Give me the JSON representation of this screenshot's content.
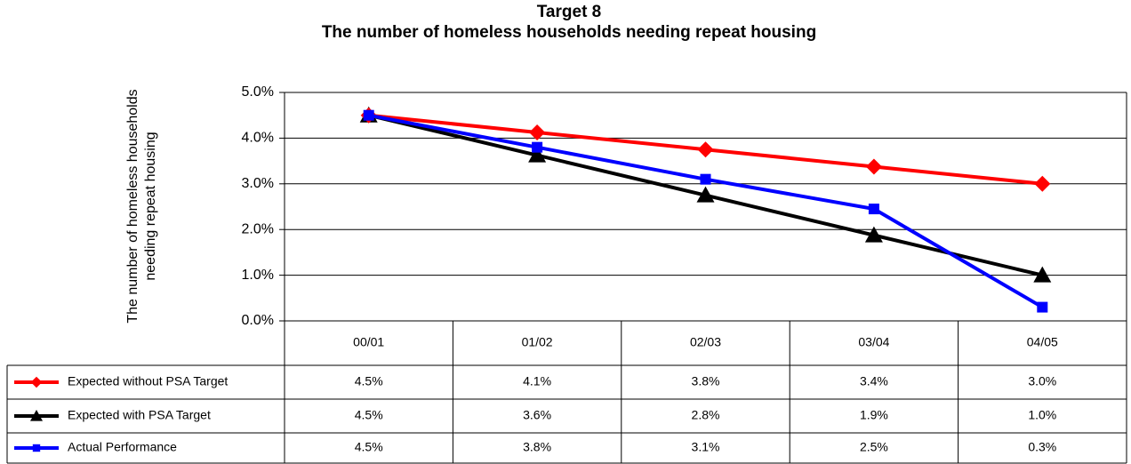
{
  "chart_data": {
    "type": "line",
    "title": "Target 8",
    "subtitle": "The number of homeless households needing repeat housing",
    "ylabel": [
      "The number of homeless households",
      "needing repeat housing"
    ],
    "categories": [
      "00/01",
      "01/02",
      "02/03",
      "03/04",
      "04/05"
    ],
    "ylim": [
      0,
      5
    ],
    "yticks": [
      {
        "value": 0,
        "label": "0.0%"
      },
      {
        "value": 1,
        "label": "1.0%"
      },
      {
        "value": 2,
        "label": "2.0%"
      },
      {
        "value": 3,
        "label": "3.0%"
      },
      {
        "value": 4,
        "label": "4.0%"
      },
      {
        "value": 5,
        "label": "5.0%"
      }
    ],
    "grid": true,
    "series": [
      {
        "name": "Expected without PSA Target",
        "color": "#ff0000",
        "marker": "diamond",
        "values": [
          4.5,
          4.125,
          3.75,
          3.375,
          3.0
        ],
        "value_labels": [
          "4.5%",
          "4.1%",
          "3.8%",
          "3.4%",
          "3.0%"
        ]
      },
      {
        "name": "Expected with PSA Target",
        "color": "#000000",
        "marker": "triangle",
        "values": [
          4.5,
          3.625,
          2.75,
          1.875,
          1.0
        ],
        "value_labels": [
          "4.5%",
          "3.6%",
          "2.8%",
          "1.9%",
          "1.0%"
        ]
      },
      {
        "name": "Actual Performance",
        "color": "#0000ff",
        "marker": "square",
        "values": [
          4.5,
          3.8,
          3.1,
          2.45,
          0.3
        ],
        "value_labels": [
          "4.5%",
          "3.8%",
          "3.1%",
          "2.5%",
          "0.3%"
        ]
      }
    ]
  }
}
